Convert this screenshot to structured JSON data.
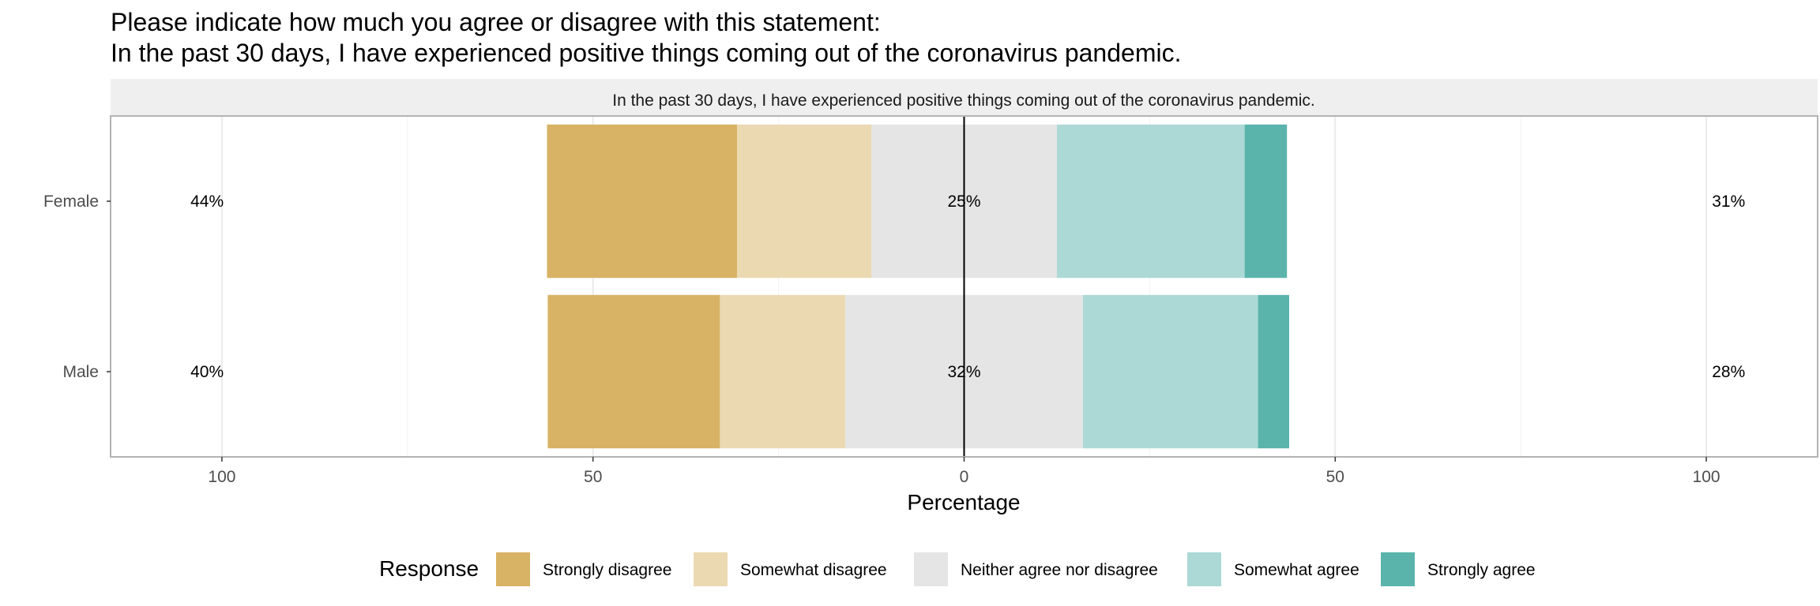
{
  "title": {
    "line1": "Please indicate how much you agree or disagree with this statement:",
    "line2": "In the past 30 days, I have experienced positive things coming out of the coronavirus pandemic."
  },
  "colors": {
    "Strongly disagree": "#d8b365",
    "Somewhat disagree": "#ebd9b2",
    "Neither agree nor disagree": "#e5e5e5",
    "Somewhat agree": "#acd9d5",
    "Strongly agree": "#5ab4ac"
  },
  "chart_data": {
    "type": "bar",
    "orientation": "horizontal-diverging",
    "facet_label": "In the past 30 days, I have experienced positive things coming out of the coronavirus pandemic.",
    "categories": [
      "Female",
      "Male"
    ],
    "series": [
      {
        "name": "Strongly disagree",
        "values": [
          25.6,
          23.2
        ]
      },
      {
        "name": "Somewhat disagree",
        "values": [
          18.1,
          16.9
        ]
      },
      {
        "name": "Neither agree nor disagree",
        "values": [
          25.0,
          32.0
        ]
      },
      {
        "name": "Somewhat agree",
        "values": [
          25.3,
          23.6
        ]
      },
      {
        "name": "Strongly agree",
        "values": [
          5.7,
          4.2
        ]
      }
    ],
    "left_labels": [
      "44%",
      "40%"
    ],
    "center_labels": [
      "25%",
      "32%"
    ],
    "right_labels": [
      "31%",
      "28%"
    ],
    "xlim": [
      -115,
      115
    ],
    "xticks": [
      -100,
      -50,
      0,
      50,
      100
    ],
    "xtick_labels": [
      "100",
      "50",
      "0",
      "50",
      "100"
    ],
    "xlabel": "Percentage",
    "ylabel": "",
    "legend": {
      "title": "Response",
      "position": "bottom",
      "entries": [
        "Strongly disagree",
        "Somewhat disagree",
        "Neither agree nor disagree",
        "Somewhat agree",
        "Strongly agree"
      ]
    }
  }
}
